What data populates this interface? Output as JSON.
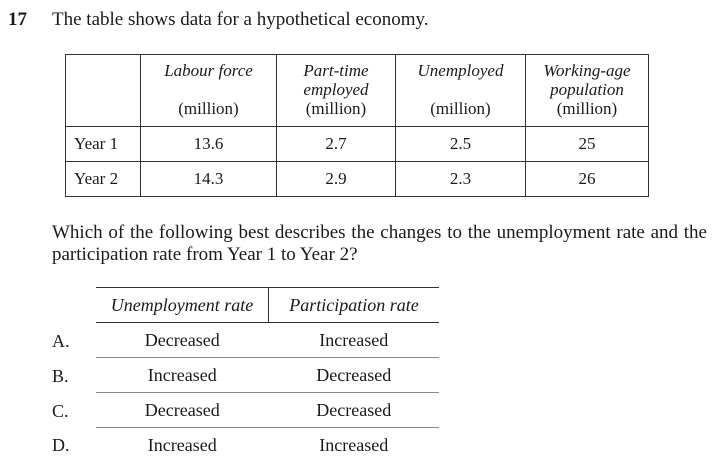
{
  "question": {
    "number": "17",
    "stem": "The table shows data for a hypothetical economy.",
    "body": "Which of the following best describes the changes to the unemployment rate and the participation rate from Year 1 to Year 2?"
  },
  "data_table": {
    "headers": [
      {
        "label": "Labour force",
        "unit": "(million)"
      },
      {
        "label": "Part-time employed",
        "unit": "(million)"
      },
      {
        "label": "Unemployed",
        "unit": "(million)"
      },
      {
        "label": "Working-age population",
        "unit": "(million)"
      }
    ],
    "rows": [
      {
        "label": "Year 1",
        "values": [
          "13.6",
          "2.7",
          "2.5",
          "25"
        ]
      },
      {
        "label": "Year 2",
        "values": [
          "14.3",
          "2.9",
          "2.3",
          "26"
        ]
      }
    ]
  },
  "options": {
    "headers": [
      "Unemployment rate",
      "Participation rate"
    ],
    "rows": [
      {
        "letter": "A.",
        "values": [
          "Decreased",
          "Increased"
        ]
      },
      {
        "letter": "B.",
        "values": [
          "Increased",
          "Decreased"
        ]
      },
      {
        "letter": "C.",
        "values": [
          "Decreased",
          "Decreased"
        ]
      },
      {
        "letter": "D.",
        "values": [
          "Increased",
          "Increased"
        ]
      }
    ]
  }
}
